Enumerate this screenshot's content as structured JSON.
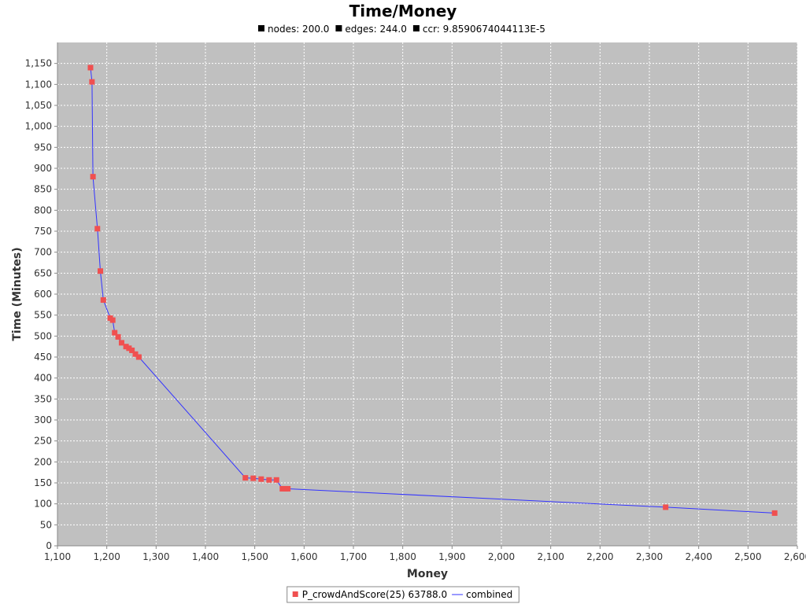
{
  "chart_data": {
    "type": "line",
    "title": "Time/Money",
    "subtitle": {
      "items": [
        {
          "text": "nodes: 200.0"
        },
        {
          "text": "edges: 244.0"
        },
        {
          "text": "ccr: 9.8590674044113E-5"
        }
      ]
    },
    "xlabel": "Money",
    "ylabel": "Time (Minutes)",
    "xlim": [
      1100,
      2600
    ],
    "ylim": [
      0,
      1200
    ],
    "x_ticks": [
      1100,
      1200,
      1300,
      1400,
      1500,
      1600,
      1700,
      1800,
      1900,
      2000,
      2100,
      2200,
      2300,
      2400,
      2500,
      2600
    ],
    "y_ticks": [
      0,
      50,
      100,
      150,
      200,
      250,
      300,
      350,
      400,
      450,
      500,
      550,
      600,
      650,
      700,
      750,
      800,
      850,
      900,
      950,
      1000,
      1050,
      1100,
      1150
    ],
    "x_tick_labels": [
      "1,100",
      "1,200",
      "1,300",
      "1,400",
      "1,500",
      "1,600",
      "1,700",
      "1,800",
      "1,900",
      "2,000",
      "2,100",
      "2,200",
      "2,300",
      "2,400",
      "2,500",
      "2,600"
    ],
    "y_tick_labels": [
      "0",
      "50",
      "100",
      "150",
      "200",
      "250",
      "300",
      "350",
      "400",
      "450",
      "500",
      "550",
      "600",
      "650",
      "700",
      "750",
      "800",
      "850",
      "900",
      "950",
      "1,000",
      "1,050",
      "1,100",
      "1,150"
    ],
    "grid": true,
    "legend_placement": "bottom-center",
    "colors": {
      "plot_background": "#c0c0c0",
      "marker": "#f05050",
      "line": "#3333ff",
      "grid": "#ffffff"
    },
    "series": [
      {
        "name": "P_crowdAndScore(25) 63788.0",
        "kind": "points",
        "x": [
          1167,
          1170,
          1172,
          1181,
          1187,
          1193,
          1207,
          1212,
          1216,
          1223,
          1230,
          1239,
          1245,
          1251,
          1258,
          1265,
          1481,
          1497,
          1513,
          1529,
          1544,
          1556,
          1562,
          1567,
          2333,
          2554
        ],
        "y": [
          1140,
          1106,
          880,
          756,
          655,
          586,
          543,
          538,
          508,
          498,
          484,
          475,
          471,
          466,
          457,
          450,
          162,
          161,
          159,
          157,
          157,
          136,
          136,
          136,
          92,
          78
        ]
      },
      {
        "name": "combined",
        "kind": "line",
        "x": [
          1167,
          1170,
          1172,
          1181,
          1187,
          1193,
          1207,
          1212,
          1216,
          1223,
          1230,
          1239,
          1245,
          1251,
          1258,
          1265,
          1481,
          1497,
          1513,
          1529,
          1544,
          1556,
          1562,
          1567,
          2333,
          2554
        ],
        "y": [
          1140,
          1106,
          880,
          756,
          655,
          586,
          543,
          538,
          508,
          498,
          484,
          475,
          471,
          466,
          457,
          450,
          162,
          161,
          159,
          157,
          157,
          136,
          136,
          136,
          92,
          78
        ]
      }
    ]
  }
}
